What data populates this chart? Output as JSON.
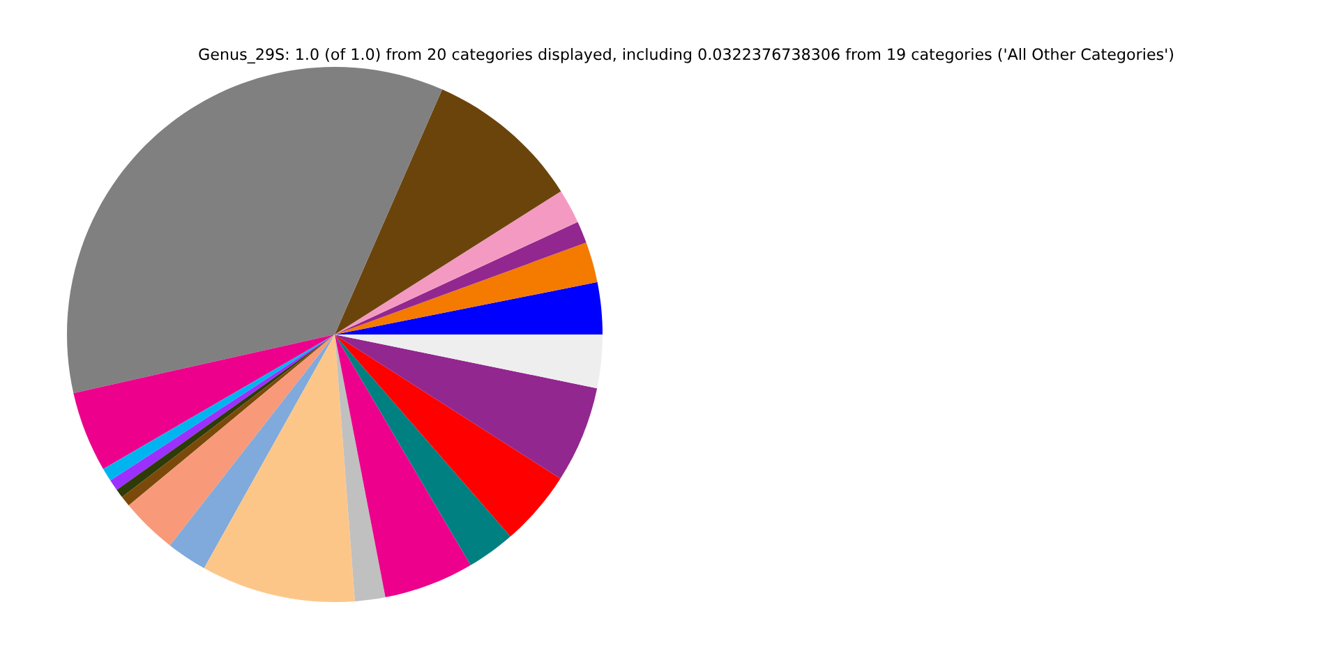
{
  "chart_data": {
    "type": "pie",
    "title": "Genus_29S: 1.0 (of 1.0) from 20 categories displayed, including 0.0322376738306 from 19 categories ('All Other Categories')",
    "categories": [
      null,
      null,
      null,
      null,
      null,
      null,
      null,
      null,
      null,
      null,
      null,
      null,
      null,
      null,
      null,
      null,
      null,
      null,
      null,
      null
    ],
    "values": [
      3.14,
      2.44,
      1.33,
      2.08,
      9.44,
      35.09,
      4.86,
      0.81,
      0.67,
      0.53,
      0.64,
      3.42,
      2.44,
      9.31,
      1.83,
      5.44,
      2.92,
      4.56,
      5.83,
      3.22
    ],
    "colors": [
      "#0000ff",
      "#f47a00",
      "#92278f",
      "#f49ac2",
      "#6b440c",
      "#808080",
      "#ec008c",
      "#00b5ef",
      "#9b30ff",
      "#2e3b08",
      "#7b4a0a",
      "#f89a7a",
      "#7faadb",
      "#fdc689",
      "#c0c0c0",
      "#ec008c",
      "#008080",
      "#ff0000",
      "#92278f",
      "#eeeeee"
    ]
  }
}
